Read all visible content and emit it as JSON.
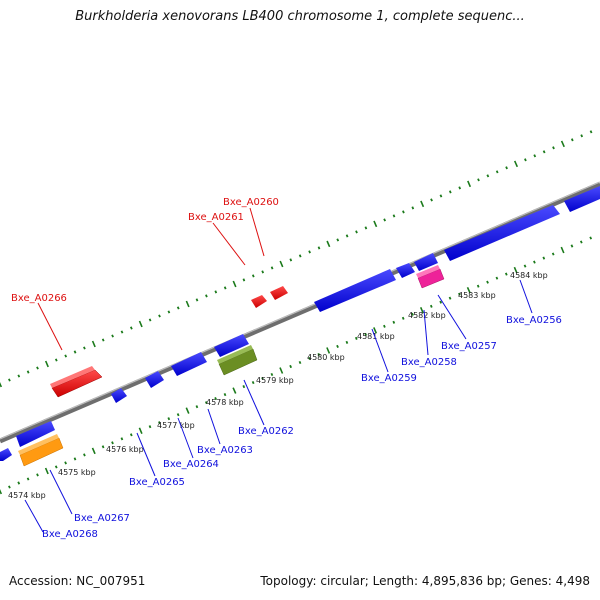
{
  "title": "Burkholderia xenovorans LB400 chromosome 1, complete sequenc...",
  "footer": {
    "accession": "Accession: NC_007951",
    "summary": "Topology: circular; Length: 4,895,836 bp; Genes: 4,498"
  },
  "colors": {
    "backbone": "#8a8a8a",
    "tick": "#1b7a1b",
    "plus_strand_gene": "#1010ee",
    "minus_strand_gene": "#1010ee",
    "highlight_red": "#ee1111",
    "highlight_orange": "#ff9a11",
    "highlight_olive": "#6b8e23",
    "highlight_pink": "#ee2299",
    "label_plus": "#1010dd",
    "label_minus": "#dd1111"
  },
  "scale_labels": [
    "4574 kbp",
    "4575 kbp",
    "4576 kbp",
    "4577 kbp",
    "4578 kbp",
    "4579 kbp",
    "4580 kbp",
    "4581 kbp",
    "4582 kbp",
    "4583 kbp",
    "4584 kbp"
  ],
  "genes_upper": [
    {
      "name": "Bxe_A0266",
      "color": "red"
    },
    {
      "name": "Bxe_A0261",
      "color": "red"
    },
    {
      "name": "Bxe_A0260",
      "color": "red"
    }
  ],
  "genes_lower": [
    {
      "name": "Bxe_A0268",
      "color": "blue"
    },
    {
      "name": "Bxe_A0267",
      "color": "blue"
    },
    {
      "name": "Bxe_A0265",
      "color": "blue"
    },
    {
      "name": "Bxe_A0264",
      "color": "blue"
    },
    {
      "name": "Bxe_A0263",
      "color": "blue"
    },
    {
      "name": "Bxe_A0262",
      "color": "blue"
    },
    {
      "name": "Bxe_A0259",
      "color": "blue"
    },
    {
      "name": "Bxe_A0258",
      "color": "blue"
    },
    {
      "name": "Bxe_A0257",
      "color": "blue"
    },
    {
      "name": "Bxe_A0256",
      "color": "blue"
    }
  ]
}
